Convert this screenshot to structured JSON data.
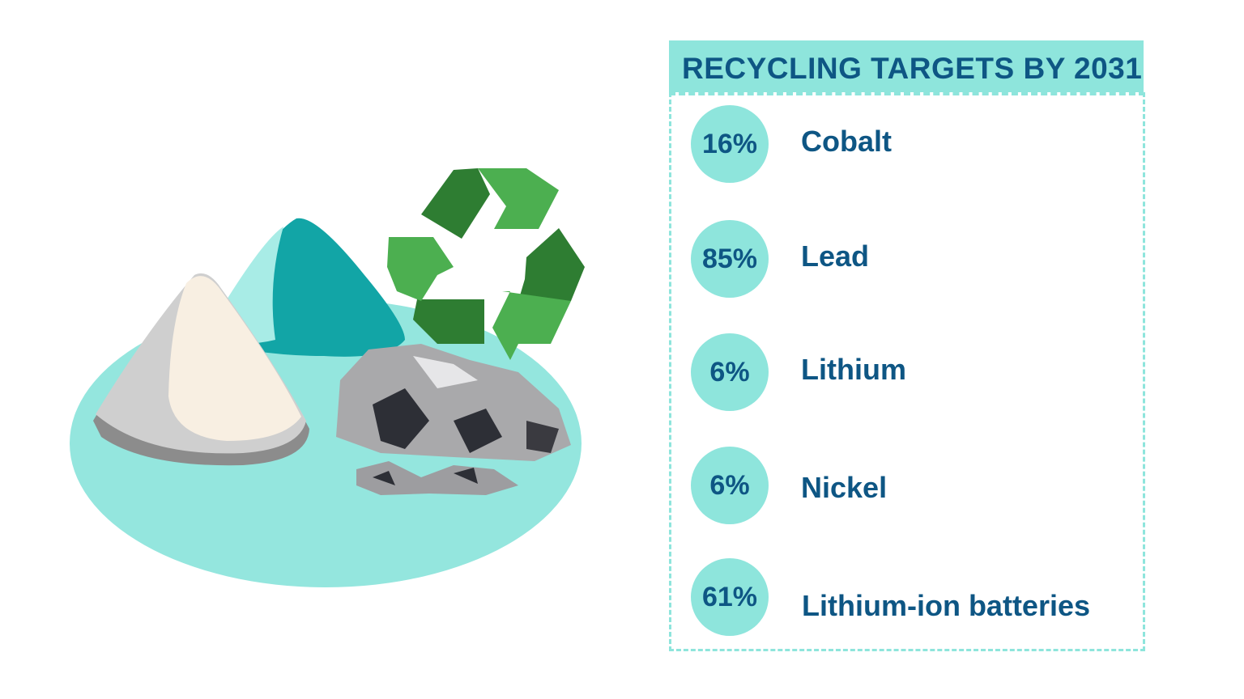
{
  "title": "RECYCLING TARGETS BY 2031",
  "colors": {
    "accent": "#8ee5dc",
    "text": "#0e5684",
    "recycle_dark": "#2e7d32",
    "recycle_light": "#4caf50"
  },
  "icons": [
    "recycling-symbol-icon",
    "mineral-piles-illustration",
    "rocks-illustration"
  ],
  "targets": [
    {
      "percent": "16%",
      "label": "Cobalt"
    },
    {
      "percent": "85%",
      "label": "Lead"
    },
    {
      "percent": "6%",
      "label": "Lithium"
    },
    {
      "percent": "6%",
      "label": "Nickel"
    },
    {
      "percent": "61%",
      "label": "Lithium-ion batteries"
    }
  ]
}
